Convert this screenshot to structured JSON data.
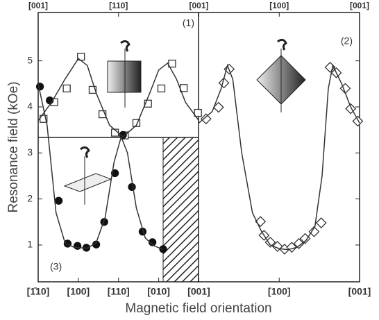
{
  "chart_data": {
    "type": "scatter",
    "x_label": "Magnetic field orientation",
    "y_label": "Resonance field (kOe)",
    "panel_labels": [
      "(1)",
      "(2)",
      "(3)"
    ],
    "xlim": [
      0,
      360
    ],
    "ylim": [
      0.2,
      6.05
    ],
    "xticks": [
      {
        "value": 0,
        "label": "[1̄10]"
      },
      {
        "value": 45,
        "label": "[100]"
      },
      {
        "value": 90,
        "label": "[110]"
      },
      {
        "value": 135,
        "label": "[010]"
      },
      {
        "value": 180,
        "label": "[001]"
      },
      {
        "value": 270,
        "label": "[100]"
      },
      {
        "value": 360,
        "label": "[001]"
      }
    ],
    "x2ticks": [
      {
        "value": 0,
        "label": "[001]"
      },
      {
        "value": 90,
        "label": "[110]"
      },
      {
        "value": 180,
        "label": "[001]"
      },
      {
        "value": 270,
        "label": "[100]"
      },
      {
        "value": 360,
        "label": "[001]"
      }
    ],
    "yticks": [
      1,
      2,
      3,
      4,
      5
    ],
    "series": [
      {
        "marker": "square",
        "color": "#333",
        "x": [
          6,
          18,
          32,
          48,
          61,
          72,
          86,
          97,
          110,
          123,
          138,
          150,
          163,
          179
        ],
        "values": [
          3.74,
          4.1,
          4.4,
          5.09,
          4.37,
          3.84,
          3.44,
          3.38,
          3.65,
          4.07,
          4.4,
          4.94,
          4.41,
          3.87
        ]
      },
      {
        "marker": "circle",
        "color": "#111",
        "x": [
          2,
          13,
          23,
          33,
          44,
          54,
          65,
          74,
          86,
          95,
          105,
          117,
          128,
          140
        ],
        "values": [
          4.44,
          4.14,
          1.96,
          1.03,
          0.98,
          0.94,
          1.01,
          1.5,
          2.56,
          3.39,
          2.26,
          1.29,
          1.06,
          0.91
        ]
      },
      {
        "marker": "diamond",
        "color": "#333",
        "x": [
          188,
          202,
          208,
          214,
          249,
          253,
          260,
          268,
          276,
          284,
          292,
          299,
          309,
          317,
          327,
          334,
          344,
          350,
          358
        ],
        "values": [
          3.74,
          3.99,
          4.52,
          4.82,
          1.51,
          1.21,
          1.06,
          0.97,
          0.91,
          0.95,
          1.03,
          1.14,
          1.29,
          1.48,
          4.86,
          4.74,
          4.4,
          3.96,
          3.69
        ]
      },
      {
        "marker": "line",
        "color": "#333",
        "x": [
          0,
          15,
          30,
          45,
          55,
          65,
          80,
          95,
          110,
          125,
          135,
          145,
          155,
          165,
          180
        ],
        "values": [
          3.7,
          4.1,
          4.6,
          5.05,
          4.9,
          4.3,
          3.6,
          3.35,
          3.6,
          4.3,
          4.8,
          4.95,
          4.6,
          4.1,
          3.7
        ]
      },
      {
        "marker": "line",
        "color": "#333",
        "x": [
          0,
          10,
          20,
          30,
          40,
          55,
          65,
          75,
          85,
          93,
          100,
          110,
          120,
          130,
          140
        ],
        "values": [
          4.5,
          3.6,
          1.7,
          1.05,
          0.95,
          0.93,
          1.05,
          1.6,
          2.8,
          3.35,
          3.0,
          1.8,
          1.15,
          0.98,
          0.9
        ]
      },
      {
        "marker": "line",
        "color": "#333",
        "x": [
          180,
          195,
          205,
          212,
          218,
          228,
          240,
          250,
          260,
          270,
          280,
          290,
          300,
          310,
          318,
          325,
          330,
          340,
          350,
          360
        ],
        "values": [
          3.65,
          3.9,
          4.4,
          4.9,
          4.6,
          3.0,
          1.7,
          1.3,
          1.0,
          0.92,
          0.9,
          0.95,
          1.1,
          1.4,
          2.5,
          4.4,
          4.9,
          4.5,
          4.0,
          3.65
        ]
      }
    ]
  }
}
